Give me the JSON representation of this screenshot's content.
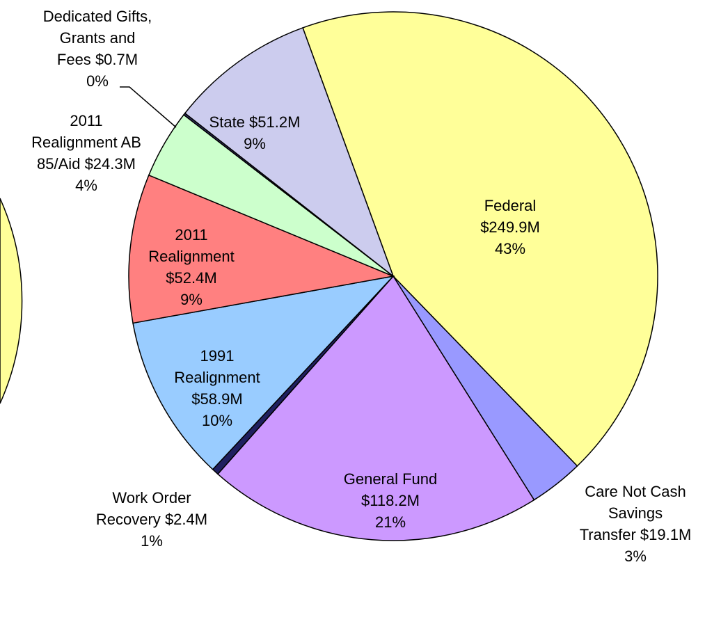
{
  "chart_data": {
    "type": "pie",
    "categories": [
      "Federal",
      "Care Not Cash\nSavings\nTransfer",
      "General Fund",
      "Work Order\nRecovery",
      "1991\nRealignment",
      "2011\nRealignment",
      "2011\nRealignment AB\n85/Aid",
      "Dedicated Gifts,\nGrants and\nFees",
      "State"
    ],
    "values": [
      249.9,
      19.1,
      118.2,
      2.4,
      58.9,
      52.4,
      24.3,
      0.7,
      51.2
    ],
    "value_labels": [
      "$249.9M",
      "$19.1M",
      "$118.2M",
      "$2.4M",
      "$58.9M",
      "$52.4M",
      "$24.3M",
      "$0.7M",
      "$51.2M"
    ],
    "percents": [
      43,
      3,
      21,
      1,
      10,
      9,
      4,
      0,
      9
    ],
    "percent_labels": [
      "43%",
      "3%",
      "21%",
      "1%",
      "10%",
      "9%",
      "4%",
      "0%",
      "9%"
    ],
    "colors": [
      "#ffff99",
      "#9999ff",
      "#cc99ff",
      "#1f1f5f",
      "#99ccff",
      "#ff8080",
      "#ccffcc",
      "#333366",
      "#ccccee"
    ]
  }
}
